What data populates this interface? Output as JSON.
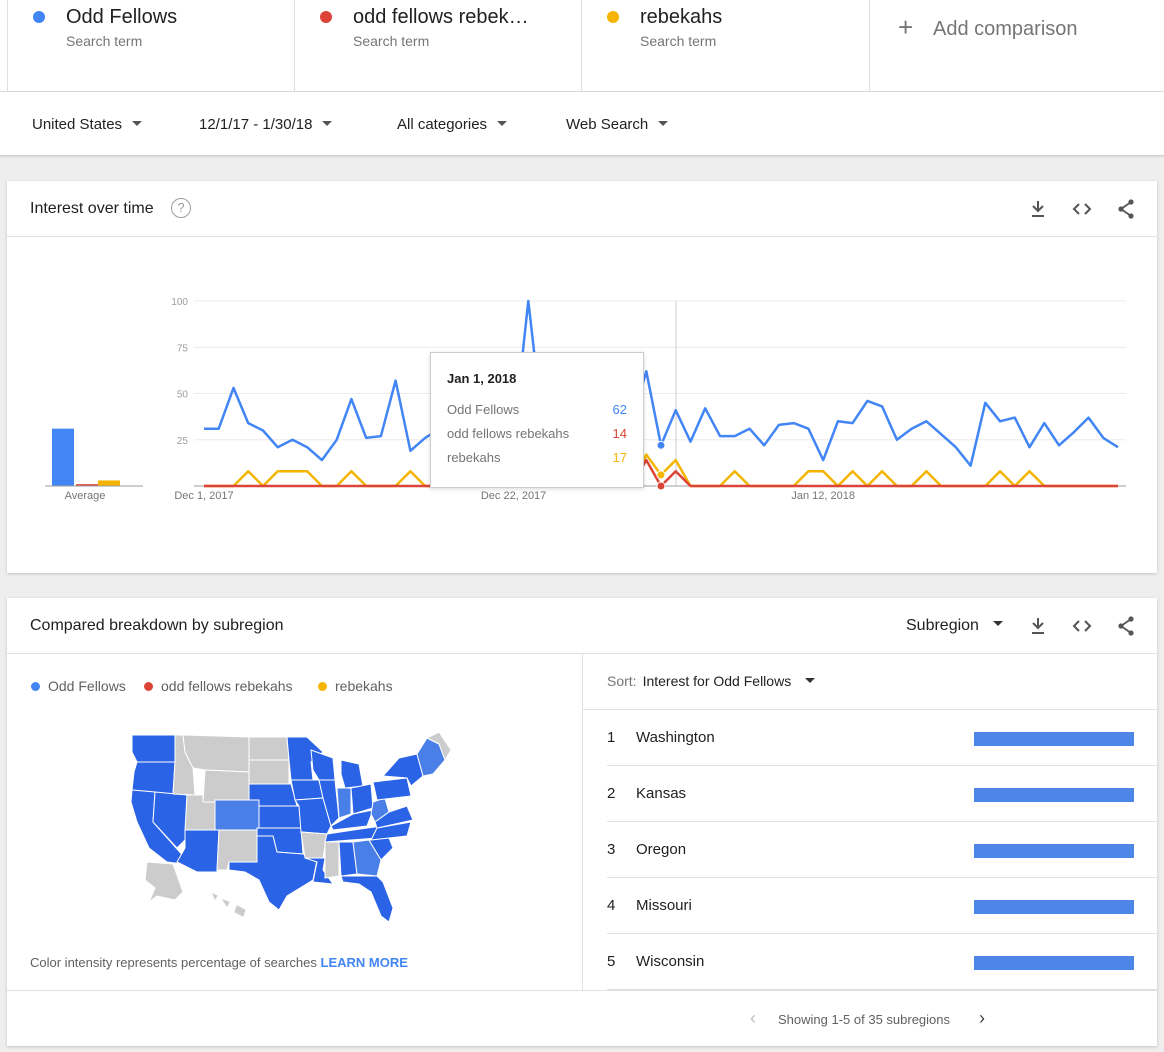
{
  "terms": [
    {
      "name": "Odd Fellows",
      "subtitle": "Search term",
      "color": "#4285f4"
    },
    {
      "name": "odd fellows rebekahs",
      "subtitle": "Search term",
      "color": "#db4437"
    },
    {
      "name": "rebekahs",
      "subtitle": "Search term",
      "color": "#f4b400"
    }
  ],
  "add_comparison": "Add comparison",
  "filters": {
    "region": "United States",
    "date_range": "12/1/17 - 1/30/18",
    "category": "All categories",
    "search_type": "Web Search"
  },
  "interest_over_time": {
    "title": "Interest over time",
    "help": "?",
    "average_label": "Average",
    "tooltip": {
      "date": "Jan 1, 2018",
      "rows": [
        {
          "label": "Odd Fellows",
          "value": "62",
          "color": "#4285f4"
        },
        {
          "label": "odd fellows rebekahs",
          "value": "14",
          "color": "#db4437"
        },
        {
          "label": "rebekahs",
          "value": "17",
          "color": "#f4b400"
        }
      ]
    }
  },
  "chart_data": {
    "type": "line",
    "x_start": "2017-12-01",
    "x_end": "2018-01-30",
    "x_tick_labels": [
      "Dec 1, 2017",
      "Dec 22, 2017",
      "Jan 12, 2018"
    ],
    "y_ticks": [
      25,
      50,
      75,
      100
    ],
    "ylim": [
      0,
      100
    ],
    "averages": [
      {
        "name": "Odd Fellows",
        "value": 31
      },
      {
        "name": "odd fellows rebekahs",
        "value": 1
      },
      {
        "name": "rebekahs",
        "value": 3
      }
    ],
    "series": [
      {
        "name": "Odd Fellows",
        "color": "#4285f4",
        "values": [
          31,
          31,
          53,
          34,
          30,
          21,
          25,
          21,
          14,
          25,
          47,
          26,
          27,
          57,
          19,
          26,
          31,
          41,
          33,
          26,
          29,
          26,
          100,
          30,
          20,
          43,
          37,
          27,
          47,
          34,
          62,
          22,
          41,
          24,
          42,
          27,
          27,
          31,
          22,
          33,
          34,
          31,
          14,
          35,
          34,
          46,
          43,
          25,
          31,
          35,
          28,
          21,
          11,
          45,
          35,
          37,
          21,
          34,
          22,
          29,
          37,
          26,
          21
        ]
      },
      {
        "name": "odd fellows rebekahs",
        "color": "#db4437",
        "values": [
          0,
          0,
          0,
          0,
          0,
          0,
          0,
          0,
          0,
          0,
          0,
          0,
          0,
          0,
          0,
          0,
          0,
          0,
          0,
          0,
          0,
          0,
          0,
          0,
          0,
          0,
          0,
          0,
          0,
          0,
          14,
          0,
          8,
          0,
          0,
          0,
          0,
          0,
          0,
          0,
          0,
          0,
          0,
          0,
          0,
          0,
          0,
          0,
          0,
          0,
          0,
          0,
          0,
          0,
          0,
          0,
          0,
          0,
          0,
          0,
          0,
          0,
          0
        ]
      },
      {
        "name": "rebekahs",
        "color": "#f4b400",
        "values": [
          0,
          0,
          0,
          8,
          0,
          8,
          8,
          8,
          0,
          0,
          8,
          0,
          0,
          0,
          8,
          0,
          0,
          8,
          0,
          0,
          8,
          0,
          0,
          0,
          8,
          0,
          0,
          0,
          10,
          0,
          17,
          6,
          14,
          0,
          0,
          0,
          8,
          0,
          0,
          0,
          0,
          8,
          8,
          0,
          8,
          0,
          8,
          0,
          0,
          8,
          0,
          0,
          0,
          0,
          8,
          0,
          8,
          0,
          0,
          0,
          0,
          0,
          0
        ]
      }
    ]
  },
  "subregion": {
    "title": "Compared breakdown by subregion",
    "mode_label": "Subregion",
    "legend": [
      {
        "name": "Odd Fellows",
        "color": "#4285f4"
      },
      {
        "name": "odd fellows rebekahs",
        "color": "#db4437"
      },
      {
        "name": "rebekahs",
        "color": "#f4b400"
      }
    ],
    "note": "Color intensity represents percentage of searches",
    "learn_more": "LEARN MORE",
    "sort_label": "Sort:",
    "sort_value": "Interest for Odd Fellows",
    "rows": [
      {
        "rank": "1",
        "name": "Washington",
        "value": 100
      },
      {
        "rank": "2",
        "name": "Kansas",
        "value": 100
      },
      {
        "rank": "3",
        "name": "Oregon",
        "value": 100
      },
      {
        "rank": "4",
        "name": "Missouri",
        "value": 100
      },
      {
        "rank": "5",
        "name": "Wisconsin",
        "value": 100
      }
    ],
    "pagination": "Showing 1-5 of 35 subregions"
  }
}
